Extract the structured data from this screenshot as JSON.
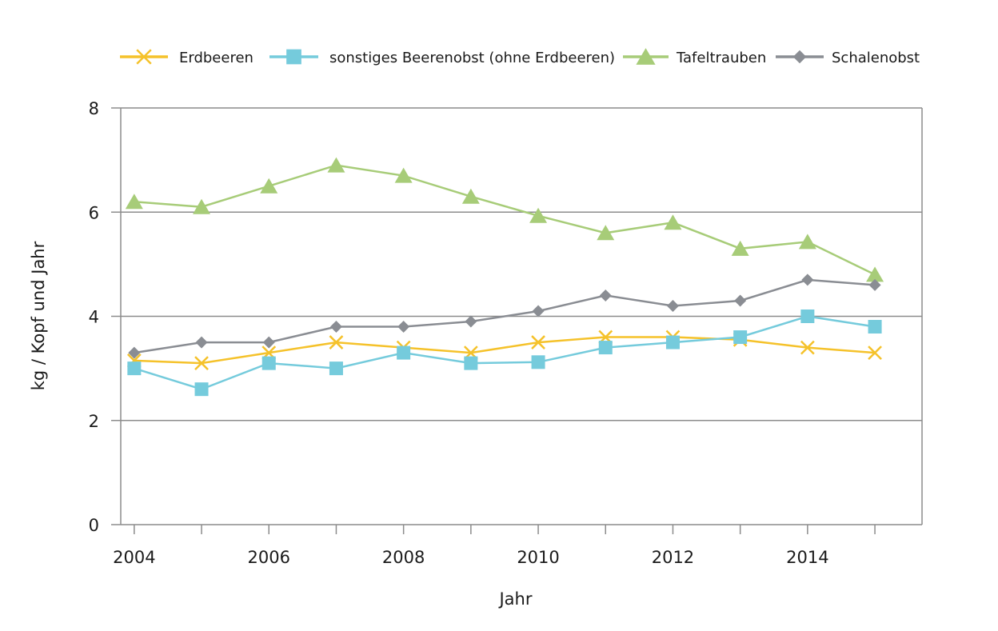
{
  "chart_data": {
    "type": "line",
    "xlabel": "Jahr",
    "ylabel": "kg / Kopf und Jahr",
    "xlim": [
      2003.8,
      2015.7
    ],
    "ylim": [
      0,
      8
    ],
    "x_ticks": [
      2004,
      2006,
      2008,
      2010,
      2012,
      2014
    ],
    "y_ticks": [
      0,
      2,
      4,
      6,
      8
    ],
    "grid": true,
    "legend_position": "top",
    "x": [
      2004,
      2005,
      2006,
      2007,
      2008,
      2009,
      2010,
      2011,
      2012,
      2013,
      2014,
      2015
    ],
    "series": [
      {
        "name": "Erdbeeren",
        "color": "#f5c22b",
        "marker": "x",
        "values": [
          3.15,
          3.1,
          3.3,
          3.5,
          3.4,
          3.3,
          3.5,
          3.6,
          3.6,
          3.55,
          3.4,
          3.3
        ]
      },
      {
        "name": "sonstiges Beerenobst (ohne Erdbeeren)",
        "color": "#75cbdc",
        "marker": "square",
        "values": [
          3.0,
          2.6,
          3.1,
          3.0,
          3.3,
          3.1,
          3.12,
          3.4,
          3.5,
          3.6,
          4.0,
          3.8
        ]
      },
      {
        "name": "Tafeltrauben",
        "color": "#a7cc78",
        "marker": "triangle",
        "values": [
          6.2,
          6.1,
          6.5,
          6.9,
          6.7,
          6.3,
          5.93,
          5.6,
          5.8,
          5.3,
          5.43,
          4.8
        ]
      },
      {
        "name": "Schalenobst",
        "color": "#8a8d93",
        "marker": "diamond",
        "values": [
          3.3,
          3.5,
          3.5,
          3.8,
          3.8,
          3.9,
          4.1,
          4.4,
          4.2,
          4.3,
          4.7,
          4.6
        ]
      }
    ]
  }
}
